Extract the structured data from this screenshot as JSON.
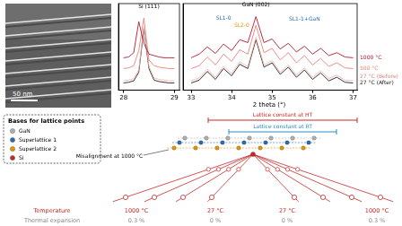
{
  "tem_image": {
    "scale_bar": "50 nm"
  },
  "chart_data": [
    {
      "type": "line",
      "x": [
        28.0,
        28.1,
        28.2,
        28.3,
        28.4,
        28.5,
        28.6,
        28.7,
        28.8,
        28.9,
        29.0
      ],
      "xlim": [
        27.9,
        29.1
      ],
      "xticks": [
        28,
        29
      ],
      "ylim": [
        0,
        12
      ],
      "tick_labels": "x",
      "grid": false,
      "series": [
        {
          "color": "#b2182b",
          "values": [
            4.5,
            4.6,
            5.2,
            9.5,
            6.5,
            5.0,
            4.8,
            4.6,
            4.5,
            4.5,
            4.5
          ]
        },
        {
          "color": "#e8827a",
          "values": [
            3.0,
            3.1,
            3.4,
            5.5,
            10.0,
            4.2,
            3.4,
            3.2,
            3.1,
            3.0,
            3.0
          ]
        },
        {
          "color": "#f4b6ae",
          "values": [
            1.3,
            1.4,
            1.6,
            2.8,
            8.8,
            3.3,
            1.7,
            1.5,
            1.4,
            1.3,
            1.3
          ]
        },
        {
          "color": "#222222",
          "values": [
            1.0,
            1.1,
            1.3,
            2.5,
            8.5,
            3.0,
            1.4,
            1.2,
            1.1,
            1.0,
            1.0
          ]
        }
      ],
      "annotations": [
        {
          "text": "Si (111)",
          "x": 28.5,
          "y": 11.2,
          "color": "#000000"
        }
      ]
    },
    {
      "type": "line",
      "x": [
        33.0,
        33.2,
        33.4,
        33.6,
        33.8,
        34.0,
        34.2,
        34.4,
        34.6,
        34.8,
        35.0,
        35.2,
        35.4,
        35.6,
        35.8,
        36.0,
        36.2,
        36.4,
        36.6,
        36.8,
        37.0
      ],
      "xlim": [
        32.8,
        37.1
      ],
      "xticks": [
        33,
        34,
        35,
        36,
        37
      ],
      "ylim": [
        0,
        12
      ],
      "tick_labels": "x",
      "grid": false,
      "x_label": "2 theta (°)",
      "series": [
        {
          "name": "1000 °C",
          "color": "#b2182b",
          "values": [
            4.5,
            5.0,
            6.0,
            5.1,
            6.4,
            5.5,
            7.0,
            6.6,
            10.2,
            6.6,
            7.1,
            5.7,
            6.5,
            5.3,
            6.1,
            5.0,
            5.8,
            4.8,
            5.2,
            4.6,
            4.5
          ]
        },
        {
          "name": "500 °C",
          "color": "#e8827a",
          "values": [
            3.0,
            3.4,
            4.6,
            3.5,
            5.0,
            4.0,
            5.6,
            5.0,
            9.0,
            5.2,
            5.8,
            4.2,
            5.2,
            3.8,
            4.8,
            3.5,
            4.4,
            3.3,
            3.8,
            3.1,
            3.0
          ]
        },
        {
          "name": "27 °C (Before)",
          "color": "#f4b6ae",
          "values": [
            1.3,
            1.7,
            2.9,
            1.8,
            3.3,
            2.3,
            3.9,
            3.3,
            7.3,
            3.5,
            4.1,
            2.5,
            3.5,
            2.1,
            3.1,
            1.8,
            2.7,
            1.6,
            2.1,
            1.4,
            1.3
          ]
        },
        {
          "name": "27 °C (After)",
          "color": "#222222",
          "values": [
            1.0,
            1.4,
            2.6,
            1.5,
            3.0,
            2.0,
            3.6,
            3.0,
            7.0,
            3.2,
            3.8,
            2.2,
            3.2,
            1.8,
            2.8,
            1.5,
            2.4,
            1.3,
            1.8,
            1.1,
            1.0
          ]
        }
      ],
      "annotations": [
        {
          "text": "GaN (002)",
          "x": 34.6,
          "y": 11.4,
          "color": "#000000"
        },
        {
          "text": "SL1-0",
          "x": 33.8,
          "y": 9.6,
          "color": "#2b6cb0"
        },
        {
          "text": "SL2-0",
          "x": 34.25,
          "y": 8.6,
          "color": "#e69500"
        },
        {
          "text": "SL1-1+GaN",
          "x": 35.8,
          "y": 9.4,
          "color": "#2b6cb0"
        }
      ]
    }
  ],
  "diagram": {
    "legend": {
      "title": "Bases for lattice points",
      "items": [
        {
          "label": "GaN",
          "color": "#b0b0b0"
        },
        {
          "label": "Superlattice 1",
          "color": "#2b6cb0"
        },
        {
          "label": "Superlattice 2",
          "color": "#e69500"
        },
        {
          "label": "Si",
          "color": "#c62828"
        }
      ]
    },
    "lattice_ht": {
      "text": "Lattice constant at HT",
      "color": "#c62828"
    },
    "lattice_rt": {
      "text": "Lattice constant at RT",
      "color": "#2b8cc4"
    },
    "misalignment": "Misalignment at 1000 °C",
    "table": {
      "rows": [
        {
          "label": "Temperature",
          "color": "#c62828",
          "cells": [
            "1000 °C",
            "27 °C",
            "27 °C",
            "1000 °C"
          ]
        },
        {
          "label": "Thermal expansion",
          "color": "#888888",
          "cells": [
            "0.3 %",
            "0 %",
            "0 %",
            "0.3 %"
          ]
        }
      ]
    }
  }
}
